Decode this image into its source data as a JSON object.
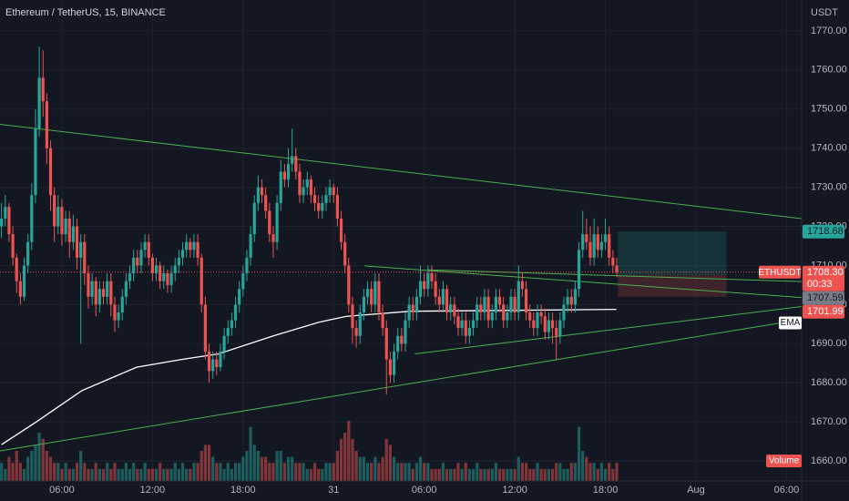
{
  "header": {
    "title": "Ethereum / TetherUS, 15, BINANCE",
    "currency": "USDT"
  },
  "chart_data": {
    "type": "candlestick",
    "symbol": "ETHUSDT",
    "up_color": "#26a69a",
    "down_color": "#ef5350",
    "ohlc": [
      [
        1720,
        1726,
        1717,
        1722
      ],
      [
        1722,
        1728,
        1720,
        1725
      ],
      [
        1725,
        1726,
        1716,
        1718
      ],
      [
        1718,
        1720,
        1710,
        1712
      ],
      [
        1712,
        1713,
        1703,
        1706
      ],
      [
        1706,
        1708,
        1700,
        1702
      ],
      [
        1702,
        1712,
        1701,
        1710
      ],
      [
        1710,
        1718,
        1708,
        1716
      ],
      [
        1716,
        1731,
        1714,
        1728
      ],
      [
        1728,
        1750,
        1726,
        1745
      ],
      [
        1745,
        1766,
        1743,
        1758
      ],
      [
        1758,
        1765,
        1748,
        1752
      ],
      [
        1752,
        1754,
        1736,
        1740
      ],
      [
        1740,
        1742,
        1724,
        1728
      ],
      [
        1728,
        1730,
        1716,
        1720
      ],
      [
        1720,
        1728,
        1718,
        1725
      ],
      [
        1725,
        1727,
        1715,
        1718
      ],
      [
        1718,
        1724,
        1716,
        1722
      ],
      [
        1722,
        1724,
        1712,
        1716
      ],
      [
        1716,
        1723,
        1714,
        1720
      ],
      [
        1720,
        1722,
        1709,
        1712
      ],
      [
        1712,
        1718,
        1690,
        1716
      ],
      [
        1716,
        1718,
        1705,
        1708
      ],
      [
        1708,
        1710,
        1699,
        1702
      ],
      [
        1702,
        1708,
        1700,
        1706
      ],
      [
        1706,
        1707,
        1697,
        1700
      ],
      [
        1700,
        1706,
        1698,
        1704
      ],
      [
        1704,
        1706,
        1700,
        1702
      ],
      [
        1702,
        1708,
        1700,
        1706
      ],
      [
        1706,
        1708,
        1697,
        1700
      ],
      [
        1700,
        1702,
        1693,
        1696
      ],
      [
        1696,
        1700,
        1694,
        1698
      ],
      [
        1698,
        1704,
        1696,
        1702
      ],
      [
        1702,
        1708,
        1700,
        1706
      ],
      [
        1706,
        1710,
        1704,
        1708
      ],
      [
        1708,
        1714,
        1706,
        1712
      ],
      [
        1712,
        1714,
        1708,
        1710
      ],
      [
        1710,
        1716,
        1708,
        1714
      ],
      [
        1714,
        1718,
        1712,
        1716
      ],
      [
        1716,
        1718,
        1710,
        1712
      ],
      [
        1712,
        1713,
        1706,
        1708
      ],
      [
        1708,
        1712,
        1706,
        1710
      ],
      [
        1710,
        1711,
        1704,
        1706
      ],
      [
        1706,
        1710,
        1704,
        1708
      ],
      [
        1708,
        1709,
        1703,
        1705
      ],
      [
        1705,
        1710,
        1703,
        1708
      ],
      [
        1708,
        1712,
        1706,
        1710
      ],
      [
        1710,
        1714,
        1708,
        1712
      ],
      [
        1712,
        1716,
        1710,
        1714
      ],
      [
        1714,
        1718,
        1712,
        1716
      ],
      [
        1716,
        1717,
        1712,
        1714
      ],
      [
        1714,
        1718,
        1712,
        1716
      ],
      [
        1716,
        1718,
        1710,
        1712
      ],
      [
        1712,
        1713,
        1698,
        1700
      ],
      [
        1700,
        1702,
        1686,
        1688
      ],
      [
        1688,
        1690,
        1680,
        1683
      ],
      [
        1683,
        1688,
        1681,
        1686
      ],
      [
        1686,
        1688,
        1682,
        1684
      ],
      [
        1684,
        1690,
        1683,
        1688
      ],
      [
        1688,
        1694,
        1686,
        1692
      ],
      [
        1692,
        1696,
        1690,
        1694
      ],
      [
        1694,
        1698,
        1692,
        1696
      ],
      [
        1696,
        1702,
        1694,
        1700
      ],
      [
        1700,
        1706,
        1698,
        1704
      ],
      [
        1704,
        1710,
        1702,
        1708
      ],
      [
        1708,
        1714,
        1706,
        1712
      ],
      [
        1712,
        1720,
        1710,
        1718
      ],
      [
        1718,
        1728,
        1716,
        1726
      ],
      [
        1726,
        1733,
        1724,
        1730
      ],
      [
        1730,
        1732,
        1726,
        1728
      ],
      [
        1728,
        1730,
        1722,
        1724
      ],
      [
        1724,
        1726,
        1716,
        1718
      ],
      [
        1718,
        1720,
        1712,
        1716
      ],
      [
        1716,
        1728,
        1714,
        1726
      ],
      [
        1726,
        1737,
        1724,
        1734
      ],
      [
        1734,
        1736,
        1730,
        1732
      ],
      [
        1732,
        1740,
        1730,
        1736
      ],
      [
        1736,
        1745,
        1734,
        1738
      ],
      [
        1738,
        1740,
        1732,
        1734
      ],
      [
        1734,
        1736,
        1726,
        1728
      ],
      [
        1728,
        1732,
        1726,
        1730
      ],
      [
        1730,
        1734,
        1728,
        1732
      ],
      [
        1732,
        1733,
        1726,
        1728
      ],
      [
        1728,
        1730,
        1724,
        1726
      ],
      [
        1726,
        1728,
        1722,
        1724
      ],
      [
        1724,
        1728,
        1722,
        1726
      ],
      [
        1726,
        1730,
        1724,
        1728
      ],
      [
        1728,
        1732,
        1726,
        1730
      ],
      [
        1730,
        1731,
        1726,
        1728
      ],
      [
        1728,
        1730,
        1720,
        1722
      ],
      [
        1722,
        1724,
        1714,
        1716
      ],
      [
        1716,
        1718,
        1708,
        1710
      ],
      [
        1710,
        1712,
        1698,
        1700
      ],
      [
        1700,
        1702,
        1690,
        1694
      ],
      [
        1694,
        1696,
        1689,
        1692
      ],
      [
        1692,
        1700,
        1690,
        1698
      ],
      [
        1698,
        1704,
        1696,
        1702
      ],
      [
        1702,
        1706,
        1700,
        1704
      ],
      [
        1704,
        1706,
        1698,
        1700
      ],
      [
        1700,
        1708,
        1698,
        1706
      ],
      [
        1706,
        1708,
        1696,
        1698
      ],
      [
        1698,
        1700,
        1692,
        1694
      ],
      [
        1694,
        1696,
        1677,
        1686
      ],
      [
        1686,
        1688,
        1680,
        1682
      ],
      [
        1682,
        1690,
        1680,
        1688
      ],
      [
        1688,
        1694,
        1686,
        1692
      ],
      [
        1692,
        1694,
        1688,
        1690
      ],
      [
        1690,
        1698,
        1688,
        1696
      ],
      [
        1696,
        1702,
        1694,
        1700
      ],
      [
        1700,
        1702,
        1696,
        1698
      ],
      [
        1698,
        1704,
        1696,
        1702
      ],
      [
        1702,
        1710,
        1700,
        1706
      ],
      [
        1706,
        1708,
        1702,
        1704
      ],
      [
        1704,
        1710,
        1702,
        1708
      ],
      [
        1708,
        1710,
        1704,
        1706
      ],
      [
        1706,
        1708,
        1700,
        1702
      ],
      [
        1702,
        1704,
        1698,
        1700
      ],
      [
        1700,
        1706,
        1698,
        1704
      ],
      [
        1704,
        1705,
        1696,
        1698
      ],
      [
        1698,
        1702,
        1696,
        1700
      ],
      [
        1700,
        1702,
        1695,
        1697
      ],
      [
        1697,
        1699,
        1692,
        1694
      ],
      [
        1694,
        1698,
        1692,
        1696
      ],
      [
        1696,
        1698,
        1690,
        1692
      ],
      [
        1692,
        1696,
        1690,
        1694
      ],
      [
        1694,
        1698,
        1692,
        1696
      ],
      [
        1696,
        1702,
        1694,
        1700
      ],
      [
        1700,
        1702,
        1696,
        1698
      ],
      [
        1698,
        1704,
        1696,
        1702
      ],
      [
        1702,
        1704,
        1694,
        1696
      ],
      [
        1696,
        1700,
        1694,
        1698
      ],
      [
        1698,
        1704,
        1696,
        1702
      ],
      [
        1702,
        1704,
        1698,
        1700
      ],
      [
        1700,
        1702,
        1694,
        1696
      ],
      [
        1696,
        1700,
        1694,
        1698
      ],
      [
        1698,
        1704,
        1696,
        1702
      ],
      [
        1702,
        1704,
        1696,
        1698
      ],
      [
        1698,
        1710,
        1696,
        1706
      ],
      [
        1706,
        1708,
        1702,
        1704
      ],
      [
        1704,
        1706,
        1696,
        1698
      ],
      [
        1698,
        1700,
        1694,
        1696
      ],
      [
        1696,
        1698,
        1692,
        1694
      ],
      [
        1694,
        1700,
        1692,
        1698
      ],
      [
        1698,
        1700,
        1695,
        1697
      ],
      [
        1697,
        1699,
        1691,
        1693
      ],
      [
        1693,
        1698,
        1691,
        1696
      ],
      [
        1696,
        1698,
        1690,
        1694
      ],
      [
        1694,
        1696,
        1686,
        1692
      ],
      [
        1692,
        1698,
        1690,
        1696
      ],
      [
        1696,
        1702,
        1694,
        1700
      ],
      [
        1700,
        1704,
        1698,
        1702
      ],
      [
        1702,
        1704,
        1698,
        1700
      ],
      [
        1700,
        1706,
        1698,
        1704
      ],
      [
        1704,
        1716,
        1702,
        1714
      ],
      [
        1714,
        1724,
        1712,
        1718
      ],
      [
        1718,
        1722,
        1714,
        1716
      ],
      [
        1716,
        1720,
        1710,
        1712
      ],
      [
        1712,
        1722,
        1710,
        1718
      ],
      [
        1718,
        1720,
        1712,
        1714
      ],
      [
        1714,
        1718,
        1712,
        1716
      ],
      [
        1716,
        1722,
        1714,
        1718
      ],
      [
        1718,
        1720,
        1710,
        1712
      ],
      [
        1712,
        1714,
        1708,
        1710
      ],
      [
        1710,
        1712,
        1707,
        1708.3
      ]
    ],
    "volume": {
      "name": "Volume",
      "values": [
        3,
        2,
        4,
        3,
        5,
        3,
        2,
        4,
        5,
        6,
        8,
        7,
        5,
        4,
        3,
        3,
        2,
        3,
        2,
        2,
        3,
        5,
        3,
        2,
        2,
        3,
        2,
        2,
        3,
        2,
        3,
        2,
        2,
        3,
        2,
        3,
        2,
        2,
        3,
        2,
        2,
        2,
        3,
        2,
        2,
        2,
        3,
        2,
        3,
        2,
        2,
        3,
        3,
        5,
        6,
        6,
        4,
        3,
        3,
        2,
        3,
        2,
        3,
        3,
        4,
        5,
        9,
        6,
        5,
        4,
        4,
        3,
        3,
        5,
        5,
        3,
        4,
        4,
        3,
        3,
        3,
        2,
        2,
        3,
        2,
        2,
        3,
        3,
        3,
        5,
        7,
        8,
        10,
        7,
        5,
        4,
        4,
        3,
        3,
        4,
        3,
        4,
        7,
        6,
        4,
        3,
        3,
        3,
        3,
        2,
        3,
        4,
        3,
        3,
        2,
        2,
        2,
        3,
        2,
        2,
        2,
        3,
        2,
        3,
        2,
        2,
        3,
        2,
        2,
        2,
        2,
        3,
        2,
        2,
        2,
        2,
        2,
        4,
        3,
        3,
        2,
        2,
        3,
        2,
        2,
        2,
        2,
        3,
        3,
        2,
        2,
        3,
        3,
        9,
        5,
        4,
        3,
        3,
        2,
        3,
        2,
        3,
        2,
        3
      ]
    },
    "ema": {
      "name": "EMA",
      "color": "#ffffff",
      "x": [
        0,
        9.2,
        21.3,
        35.8,
        47.9,
        57.5,
        72,
        84.1,
        91.4,
        108.3,
        132.4,
        162.9
      ],
      "values": [
        1664.2,
        1670,
        1678,
        1684,
        1686,
        1687.4,
        1692,
        1695.5,
        1697,
        1698.3,
        1698.5,
        1698.8
      ]
    },
    "last_price": 1708.3,
    "last_price_label": "1708.30",
    "countdown": "00:33",
    "position": {
      "target": 1718.68,
      "entry": 1707.59,
      "stop": 1701.99,
      "x": [
        163.3,
        192.1
      ]
    },
    "trendline_color": "#4caf50",
    "trendlines": [
      [
        [
          -0.4,
          1746.1
        ],
        [
          212,
          1722.0
        ]
      ],
      [
        [
          -0.4,
          1662.6
        ],
        [
          212,
          1696.2
        ]
      ],
      [
        [
          109.5,
          1687.4
        ],
        [
          212,
          1699.5
        ]
      ],
      [
        [
          96.2,
          1709.9
        ],
        [
          212,
          1701.8
        ]
      ],
      [
        [
          113,
          1708.9
        ],
        [
          212,
          1705.9
        ]
      ]
    ],
    "xlim": [
      -0.4,
      212
    ],
    "xticks": [
      {
        "value": 16,
        "label": "06:00"
      },
      {
        "value": 40,
        "label": "12:00"
      },
      {
        "value": 64,
        "label": "18:00"
      },
      {
        "value": 88,
        "label": "31"
      },
      {
        "value": 112,
        "label": "06:00"
      },
      {
        "value": 136,
        "label": "12:00"
      },
      {
        "value": 160,
        "label": "18:00"
      },
      {
        "value": 184,
        "label": "Aug"
      },
      {
        "value": 208,
        "label": "06:00"
      }
    ],
    "ylim": [
      1654.9,
      1777.9
    ],
    "yticks": [
      {
        "value": 1660,
        "label": "1660.00"
      },
      {
        "value": 1670,
        "label": "1670.00"
      },
      {
        "value": 1680,
        "label": "1680.00"
      },
      {
        "value": 1690,
        "label": "1690.00"
      },
      {
        "value": 1700,
        "label": "1700.00"
      },
      {
        "value": 1710,
        "label": "1710.00"
      },
      {
        "value": 1720,
        "label": "1720.00"
      },
      {
        "value": 1730,
        "label": "1730.00"
      },
      {
        "value": 1740,
        "label": "1740.00"
      },
      {
        "value": 1750,
        "label": "1750.00"
      },
      {
        "value": 1760,
        "label": "1760.00"
      },
      {
        "value": 1770,
        "label": "1770.00"
      }
    ],
    "grid": true
  }
}
